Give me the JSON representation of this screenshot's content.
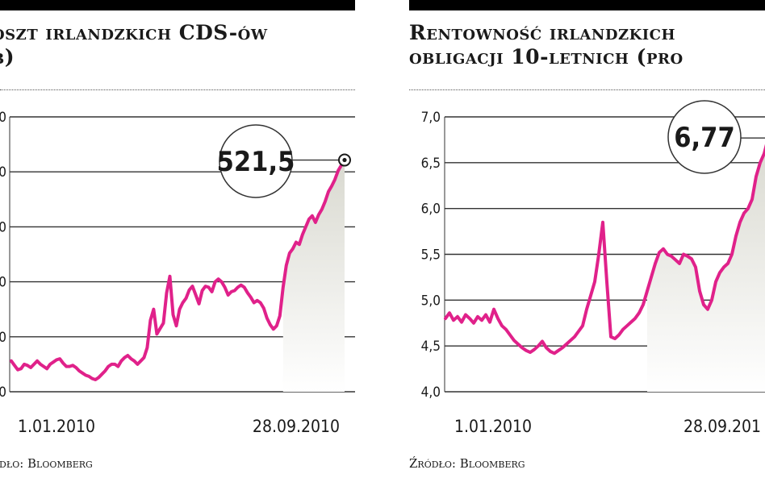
{
  "colors": {
    "line": "#e0218a",
    "grid": "#333333",
    "text": "#1a1a1a",
    "fill_top": "#d9d9d0",
    "fill_bottom": "#ffffff"
  },
  "left": {
    "title_line1": "oszt irlandzkich CDS-ów",
    "title_line2": "b)",
    "source": "ódło: Bloomberg",
    "callout": "521,5",
    "tick_labels": [
      "0",
      "0",
      "0",
      "0",
      "0",
      "0"
    ],
    "x_start_label": "1.01.2010",
    "x_end_label": "28.09.2010"
  },
  "right": {
    "title_line1": "Rentowność irlandzkich",
    "title_line2": "obligacji 10-letnich (pro",
    "source": "Źródło: Bloomberg",
    "callout": "6,77",
    "tick_labels": [
      "7,0",
      "6,5",
      "6,0",
      "5,5",
      "5,0",
      "4,5",
      "4,0"
    ],
    "x_start_label": "1.01.2010",
    "x_end_label": "28.09.201"
  },
  "chart_data": [
    {
      "type": "line",
      "title": "oszt irlandzkich CDS-ów b)",
      "xlabel": "",
      "ylabel": "",
      "ylim": [
        100,
        600
      ],
      "x_start": "1.01.2010",
      "x_end": "28.09.2010",
      "callout": "521,5",
      "series": [
        {
          "values": [
            156,
            148,
            140,
            142,
            150,
            148,
            144,
            150,
            156,
            150,
            146,
            142,
            150,
            154,
            158,
            160,
            152,
            146,
            146,
            148,
            144,
            138,
            134,
            130,
            128,
            124,
            122,
            126,
            132,
            138,
            146,
            150,
            150,
            146,
            156,
            162,
            166,
            160,
            156,
            150,
            156,
            162,
            180,
            230,
            250,
            205,
            215,
            225,
            280,
            310,
            240,
            220,
            250,
            262,
            270,
            285,
            292,
            276,
            260,
            284,
            292,
            290,
            282,
            300,
            305,
            300,
            290,
            276,
            282,
            284,
            290,
            294,
            290,
            280,
            272,
            262,
            266,
            262,
            252,
            234,
            222,
            214,
            220,
            238,
            290,
            330,
            352,
            360,
            372,
            368,
            386,
            400,
            414,
            420,
            408,
            422,
            432,
            446,
            464,
            474,
            486,
            502,
            512,
            521.5
          ]
        }
      ]
    },
    {
      "type": "line",
      "title": "Rentowność irlandzkich obligacji 10-letnich (pro",
      "xlabel": "",
      "ylabel": "",
      "ylim": [
        4.0,
        7.0
      ],
      "x_start": "1.01.2010",
      "x_end": "28.09.2010",
      "callout": "6,77",
      "series": [
        {
          "values": [
            4.8,
            4.86,
            4.78,
            4.82,
            4.76,
            4.84,
            4.8,
            4.75,
            4.82,
            4.78,
            4.84,
            4.76,
            4.9,
            4.8,
            4.72,
            4.68,
            4.62,
            4.56,
            4.52,
            4.48,
            4.45,
            4.43,
            4.46,
            4.5,
            4.55,
            4.48,
            4.44,
            4.42,
            4.45,
            4.48,
            4.52,
            4.56,
            4.6,
            4.66,
            4.72,
            4.9,
            5.05,
            5.2,
            5.5,
            5.85,
            5.2,
            4.6,
            4.58,
            4.62,
            4.68,
            4.72,
            4.76,
            4.8,
            4.86,
            4.95,
            5.1,
            5.25,
            5.4,
            5.52,
            5.56,
            5.5,
            5.48,
            5.44,
            5.4,
            5.5,
            5.48,
            5.45,
            5.36,
            5.1,
            4.95,
            4.9,
            5.0,
            5.2,
            5.3,
            5.36,
            5.4,
            5.5,
            5.7,
            5.85,
            5.95,
            6.0,
            6.1,
            6.35,
            6.5,
            6.6,
            6.77
          ]
        }
      ]
    }
  ]
}
